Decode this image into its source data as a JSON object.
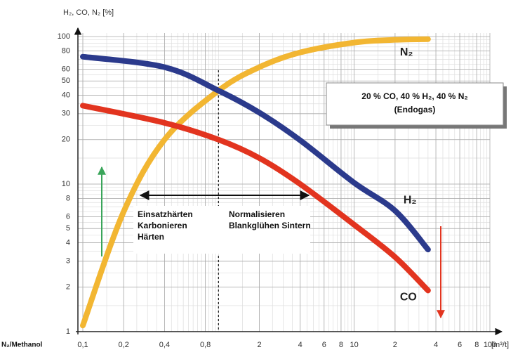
{
  "chart_data": {
    "type": "line",
    "y_label": "H₂, CO, N₂ [%]",
    "x_label": "[m³/t]",
    "x_start_label": "N₂/Methanol",
    "xlog": true,
    "ylog": true,
    "grid": true,
    "xlim": [
      0.1,
      100
    ],
    "ylim": [
      1,
      100
    ],
    "xticks": [
      {
        "value": 0.1,
        "label": "0,1"
      },
      {
        "value": 0.2,
        "label": "0,2"
      },
      {
        "value": 0.4,
        "label": "0,4"
      },
      {
        "value": 0.8,
        "label": "0,8"
      },
      2,
      4,
      6,
      8,
      10,
      {
        "value": 20,
        "label": "2"
      },
      {
        "value": 40,
        "label": "4"
      },
      {
        "value": 60,
        "label": "6"
      },
      {
        "value": 80,
        "label": "8"
      },
      100
    ],
    "yticks": [
      1,
      2,
      3,
      4,
      5,
      6,
      8,
      10,
      20,
      30,
      40,
      50,
      60,
      80,
      100
    ],
    "vline": 1,
    "series": [
      {
        "name": "N₂",
        "color": "#f2b632",
        "x": [
          0.1,
          0.2,
          0.4,
          1,
          2,
          4,
          10,
          20,
          35
        ],
        "values": [
          1.1,
          6.5,
          20,
          43,
          62,
          78,
          91,
          95,
          96
        ]
      },
      {
        "name": "H₂",
        "color": "#2b3a8c",
        "x": [
          0.1,
          0.4,
          1,
          2,
          4,
          10,
          20,
          35
        ],
        "values": [
          73,
          62,
          43,
          30.5,
          19.8,
          10.2,
          6.6,
          3.6
        ]
      },
      {
        "name": "CO",
        "color": "#e2341f",
        "x": [
          0.1,
          0.4,
          1,
          2,
          4,
          10,
          20,
          35
        ],
        "values": [
          34,
          26,
          20,
          15,
          10,
          5.3,
          3.2,
          1.9
        ]
      }
    ],
    "annotations": {
      "box_line1": "20 % CO, 40 % H₂, 40 % N₂",
      "box_line2": "(Endogas)",
      "left_1": "Einsatzhärten",
      "left_2": "Karbonieren",
      "left_3": "Härten",
      "right_1": "Normalisieren",
      "right_2": "Blankglühen Sintern"
    }
  }
}
